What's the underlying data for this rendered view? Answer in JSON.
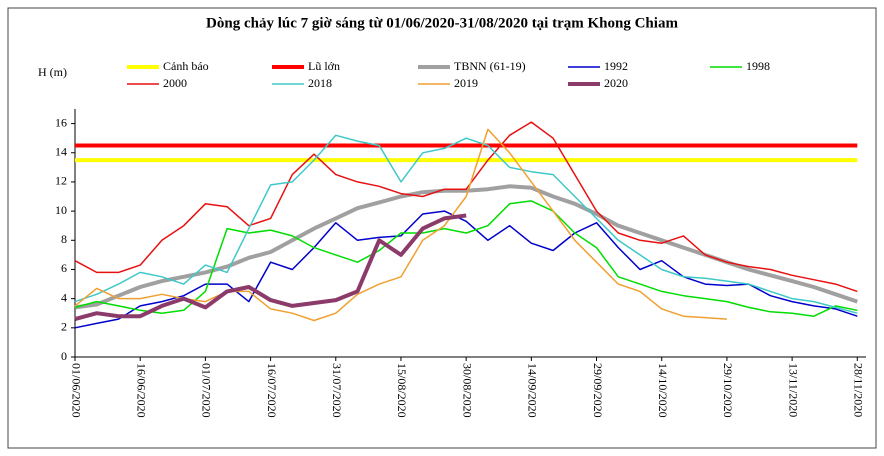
{
  "chart_data": {
    "type": "line",
    "title": "Dòng chảy lúc 7 giờ sáng từ 01/06/2020-31/08/2020 tại trạm Khong Chiam",
    "y_label": "H (m)",
    "x": [
      0,
      5,
      10,
      15,
      20,
      25,
      30,
      35,
      40,
      45,
      50,
      55,
      60,
      65,
      70,
      75,
      80,
      85,
      90,
      95,
      100,
      105,
      110,
      115,
      120,
      125,
      130,
      135,
      140,
      145,
      150,
      155,
      160,
      165,
      170,
      175,
      180
    ],
    "xlim": [
      0,
      182
    ],
    "xticks": [
      {
        "value": 0,
        "label": "01/06/2020"
      },
      {
        "value": 15,
        "label": "16/06/2020"
      },
      {
        "value": 30,
        "label": "01/07/2020"
      },
      {
        "value": 45,
        "label": "16/07/2020"
      },
      {
        "value": 60,
        "label": "31/07/2020"
      },
      {
        "value": 75,
        "label": "15/08/2020"
      },
      {
        "value": 90,
        "label": "30/08/2020"
      },
      {
        "value": 105,
        "label": "14/09/2020"
      },
      {
        "value": 120,
        "label": "29/09/2020"
      },
      {
        "value": 135,
        "label": "14/10/2020"
      },
      {
        "value": 150,
        "label": "29/10/2020"
      },
      {
        "value": 165,
        "label": "13/11/2020"
      },
      {
        "value": 180,
        "label": "28/11/2020"
      }
    ],
    "ylim": [
      0,
      17
    ],
    "yticks": [
      0,
      2,
      4,
      6,
      8,
      10,
      12,
      14,
      16
    ],
    "series": [
      {
        "name": "Cảnh báo",
        "color": "#ffff00",
        "linewidth": 4,
        "values": [
          13.5,
          13.5,
          13.5,
          13.5,
          13.5,
          13.5,
          13.5,
          13.5,
          13.5,
          13.5,
          13.5,
          13.5,
          13.5,
          13.5,
          13.5,
          13.5,
          13.5,
          13.5,
          13.5,
          13.5,
          13.5,
          13.5,
          13.5,
          13.5,
          13.5,
          13.5,
          13.5,
          13.5,
          13.5,
          13.5,
          13.5,
          13.5,
          13.5,
          13.5,
          13.5,
          13.5,
          13.5
        ]
      },
      {
        "name": "Lũ lớn",
        "color": "#ff0000",
        "linewidth": 4,
        "values": [
          14.5,
          14.5,
          14.5,
          14.5,
          14.5,
          14.5,
          14.5,
          14.5,
          14.5,
          14.5,
          14.5,
          14.5,
          14.5,
          14.5,
          14.5,
          14.5,
          14.5,
          14.5,
          14.5,
          14.5,
          14.5,
          14.5,
          14.5,
          14.5,
          14.5,
          14.5,
          14.5,
          14.5,
          14.5,
          14.5,
          14.5,
          14.5,
          14.5,
          14.5,
          14.5,
          14.5,
          14.5
        ]
      },
      {
        "name": "TBNN (61-19)",
        "color": "#a0a0a0",
        "linewidth": 4,
        "values": [
          3.4,
          3.6,
          4.2,
          4.8,
          5.2,
          5.5,
          5.8,
          6.2,
          6.8,
          7.2,
          8.0,
          8.8,
          9.5,
          10.2,
          10.6,
          11.0,
          11.3,
          11.4,
          11.4,
          11.5,
          11.7,
          11.6,
          11.0,
          10.5,
          9.8,
          9.0,
          8.5,
          8.0,
          7.5,
          7.0,
          6.5,
          6.0,
          5.6,
          5.2,
          4.8,
          4.3,
          3.8
        ]
      },
      {
        "name": "1992",
        "color": "#0000cc",
        "linewidth": 1.5,
        "values": [
          2.0,
          2.3,
          2.6,
          3.5,
          3.8,
          4.2,
          5.0,
          5.0,
          3.8,
          6.5,
          6.0,
          7.5,
          9.2,
          8.0,
          8.2,
          8.3,
          9.8,
          10.0,
          9.3,
          8.0,
          9.0,
          7.8,
          7.3,
          8.5,
          9.2,
          7.5,
          6.0,
          6.6,
          5.5,
          5.0,
          4.9,
          5.0,
          4.2,
          3.8,
          3.5,
          3.3,
          2.8
        ]
      },
      {
        "name": "1998",
        "color": "#00dd00",
        "linewidth": 1.5,
        "values": [
          3.4,
          3.8,
          3.5,
          3.2,
          3.0,
          3.2,
          4.5,
          8.8,
          8.5,
          8.7,
          8.3,
          7.5,
          7.0,
          6.5,
          7.3,
          8.5,
          8.5,
          8.8,
          8.5,
          9.0,
          10.5,
          10.7,
          10.0,
          8.5,
          7.5,
          5.5,
          5.0,
          4.5,
          4.2,
          4.0,
          3.8,
          3.4,
          3.1,
          3.0,
          2.8,
          3.5,
          3.2
        ]
      },
      {
        "name": "2000",
        "color": "#e81010",
        "linewidth": 1.5,
        "values": [
          6.6,
          5.8,
          5.8,
          6.3,
          8.0,
          9.0,
          10.5,
          10.3,
          9.0,
          9.5,
          12.5,
          13.9,
          12.5,
          12.0,
          11.7,
          11.2,
          11.0,
          11.5,
          11.5,
          13.5,
          15.2,
          16.1,
          15.0,
          12.5,
          10.0,
          8.5,
          8.0,
          7.8,
          8.3,
          7.0,
          6.5,
          6.2,
          6.0,
          5.6,
          5.3,
          5.0,
          4.5
        ]
      },
      {
        "name": "2018",
        "color": "#40c8c8",
        "linewidth": 1.5,
        "values": [
          3.8,
          4.3,
          5.0,
          5.8,
          5.5,
          5.0,
          6.3,
          5.8,
          8.8,
          11.8,
          12.0,
          13.5,
          15.2,
          14.8,
          14.5,
          12.0,
          14.0,
          14.3,
          15.0,
          14.5,
          13.0,
          12.7,
          12.5,
          11.0,
          9.5,
          8.0,
          7.0,
          6.0,
          5.5,
          5.4,
          5.2,
          5.0,
          4.5,
          4.0,
          3.8,
          3.4,
          3.0
        ]
      },
      {
        "name": "2019",
        "color": "#f0a030",
        "linewidth": 1.5,
        "values": [
          3.5,
          4.7,
          4.0,
          4.0,
          4.3,
          4.0,
          3.8,
          4.5,
          4.5,
          3.3,
          3.0,
          2.5,
          3.0,
          4.3,
          5.0,
          5.5,
          8.0,
          9.0,
          11.0,
          15.6,
          14.0,
          12.0,
          10.0,
          8.0,
          6.5,
          5.0,
          4.5,
          3.3,
          2.8,
          2.7,
          2.6,
          null,
          null,
          null,
          null,
          null,
          null
        ]
      },
      {
        "name": "2020",
        "color": "#8b3a6a",
        "linewidth": 4,
        "values": [
          2.6,
          3.0,
          2.8,
          2.8,
          3.5,
          4.0,
          3.4,
          4.5,
          4.8,
          3.9,
          3.5,
          3.7,
          3.9,
          4.5,
          8.0,
          7.0,
          8.8,
          9.5,
          9.7,
          null,
          null,
          null,
          null,
          null,
          null,
          null,
          null,
          null,
          null,
          null,
          null,
          null,
          null,
          null,
          null,
          null,
          null
        ]
      }
    ]
  }
}
